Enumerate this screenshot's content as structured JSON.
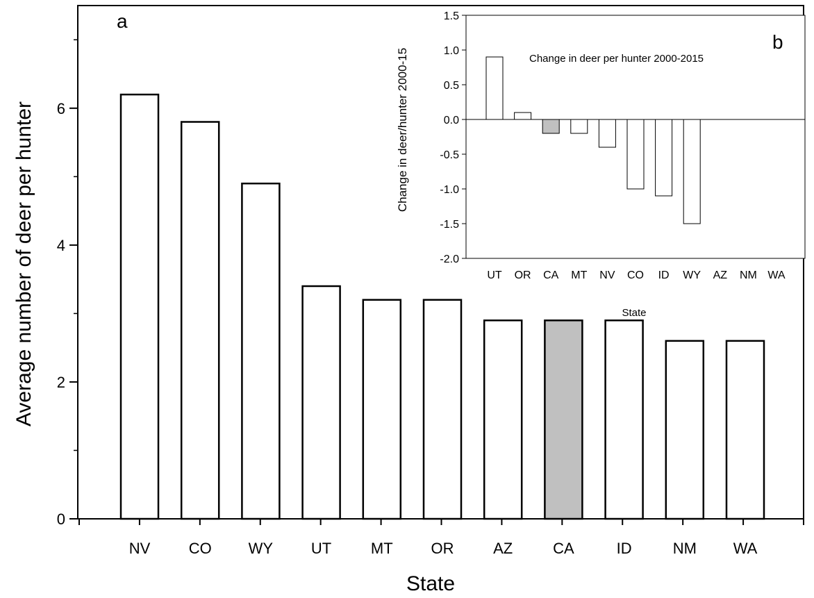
{
  "chart_data": [
    {
      "type": "bar",
      "panel_label": "a",
      "categories": [
        "NV",
        "CO",
        "WY",
        "UT",
        "MT",
        "OR",
        "AZ",
        "CA",
        "ID",
        "NM",
        "WA"
      ],
      "values": [
        6.2,
        5.8,
        4.9,
        3.4,
        3.2,
        3.2,
        2.9,
        2.9,
        2.9,
        2.6,
        2.6
      ],
      "highlight_category": "CA",
      "bar_fill": "#ffffff",
      "highlight_fill": "#c0c0c0",
      "xlabel": "State",
      "ylabel": "Average number of deer per hunter",
      "ylim": [
        0,
        7.5
      ],
      "yticks": [
        0,
        2,
        4,
        6
      ],
      "grid": false
    },
    {
      "type": "bar",
      "panel_label": "b",
      "title": "Change in deer per hunter 2000-2015",
      "categories": [
        "UT",
        "OR",
        "CA",
        "MT",
        "NV",
        "CO",
        "ID",
        "WY",
        "AZ",
        "NM",
        "WA"
      ],
      "values": [
        0.9,
        0.1,
        -0.2,
        -0.2,
        -0.4,
        -1.0,
        -1.1,
        -1.5,
        0,
        0,
        0
      ],
      "highlight_category": "CA",
      "bar_fill": "#ffffff",
      "highlight_fill": "#c0c0c0",
      "xlabel": "State",
      "ylabel": "Change in deer/hunter 2000-15",
      "ylim": [
        -2.0,
        1.5
      ],
      "yticks": [
        "1.5",
        "1.0",
        "0.5",
        "0.0",
        "-0.5",
        "-1.0",
        "-1.5",
        "-2.0"
      ],
      "grid": false
    }
  ]
}
